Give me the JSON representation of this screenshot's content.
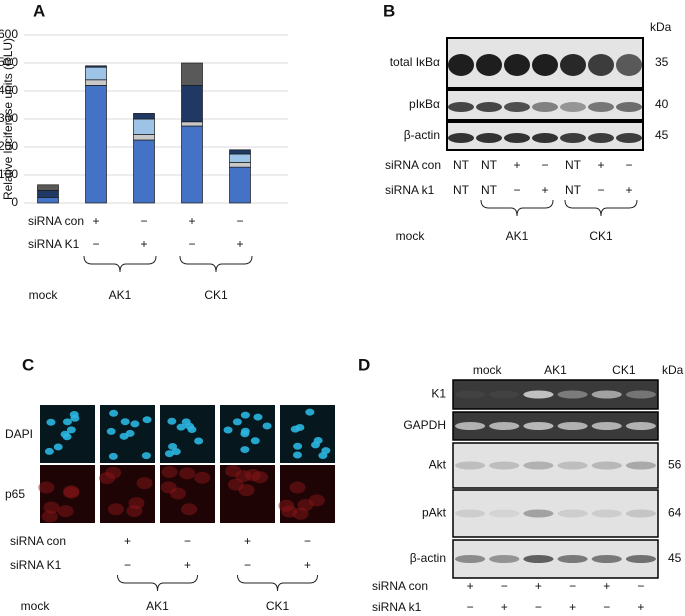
{
  "chart_data": {
    "type": "bar",
    "stacked": true,
    "panel_label": "A",
    "y_label": "Relative luciferase units (RLU)",
    "ylim": [
      0,
      600
    ],
    "yticks": [
      0,
      100,
      200,
      300,
      400,
      500,
      600
    ],
    "grid": true,
    "series": [
      {
        "color": "#4472c4",
        "values": [
          20,
          420,
          225,
          275,
          128
        ]
      },
      {
        "color": "#c9c9c9",
        "values": [
          null,
          20,
          20,
          15,
          17
        ]
      },
      {
        "color": "#9dc3e6",
        "values": [
          null,
          45,
          55,
          null,
          30
        ]
      },
      {
        "color": "#203864",
        "values": [
          25,
          5,
          20,
          130,
          15
        ]
      },
      {
        "color": "#595959",
        "values": [
          20,
          null,
          null,
          80,
          null
        ]
      }
    ],
    "conditions": [
      {
        "label": "siRNA con",
        "values": [
          null,
          "+",
          "−",
          "+",
          "−"
        ]
      },
      {
        "label": "siRNA K1",
        "values": [
          null,
          "−",
          "+",
          "−",
          "+"
        ]
      }
    ],
    "groups": [
      "mock",
      "AK1",
      "CK1"
    ]
  },
  "panel_B": {
    "panel_label": "B",
    "kda_header": "kDa",
    "rows": [
      {
        "label": "total IκBα",
        "kda": 35
      },
      {
        "label": "pIκBα",
        "kda": 40
      },
      {
        "label": "β-actin",
        "kda": 45
      }
    ],
    "conditions": [
      {
        "label": "siRNA con",
        "values": [
          "NT",
          "NT",
          "+",
          "−",
          "NT",
          "+",
          "−"
        ]
      },
      {
        "label": "siRNA k1",
        "values": [
          "NT",
          "NT",
          "−",
          "+",
          "NT",
          "−",
          "+"
        ]
      }
    ],
    "groups": [
      "mock",
      "AK1",
      "CK1"
    ]
  },
  "panel_C": {
    "panel_label": "C",
    "image_rows": [
      "DAPI",
      "p65"
    ],
    "conditions": [
      {
        "label": "siRNA con",
        "values": [
          null,
          "+",
          "−",
          "+",
          "−"
        ]
      },
      {
        "label": "siRNA K1",
        "values": [
          null,
          "−",
          "+",
          "−",
          "+"
        ]
      }
    ],
    "groups": [
      "mock",
      "AK1",
      "CK1"
    ]
  },
  "panel_D": {
    "panel_label": "D",
    "groups": [
      "mock",
      "AK1",
      "CK1"
    ],
    "kda_header": "kDa",
    "rows": [
      {
        "label": "K1"
      },
      {
        "label": "GAPDH"
      },
      {
        "label": "Akt",
        "kda": 56
      },
      {
        "label": "pAkt",
        "kda": 64
      },
      {
        "label": "β-actin",
        "kda": 45
      }
    ],
    "conditions": [
      {
        "label": "siRNA con",
        "values": [
          "+",
          "−",
          "+",
          "−",
          "+",
          "−"
        ]
      },
      {
        "label": "siRNA k1",
        "values": [
          "−",
          "+",
          "−",
          "+",
          "−",
          "+"
        ]
      }
    ]
  }
}
